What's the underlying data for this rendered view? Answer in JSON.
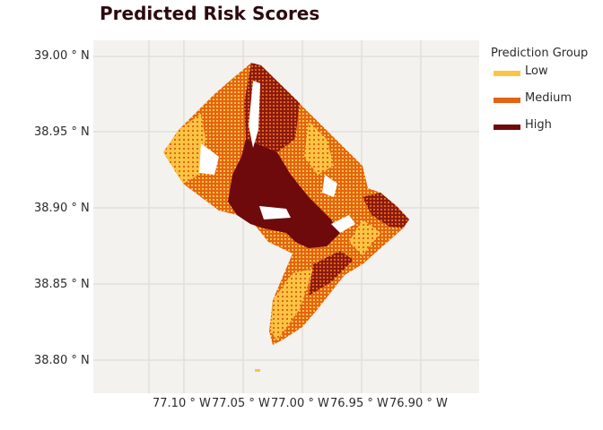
{
  "title": "Predicted Risk Scores",
  "yaxis": {
    "ticks": [
      "39.00 ° N",
      "38.95 ° N",
      "38.90 ° N",
      "38.85 ° N",
      "38.80 ° N"
    ]
  },
  "xaxis": {
    "ticks": [
      "77.10 ° W",
      "77.05 ° W",
      "77.00 ° W",
      "76.95 ° W",
      "76.90 ° W"
    ]
  },
  "legend": {
    "title": "Prediction Group",
    "items": [
      {
        "label": "Low",
        "color": "#fbc443"
      },
      {
        "label": "Medium",
        "color": "#e36413"
      },
      {
        "label": "High",
        "color": "#6e0a0c"
      }
    ]
  }
}
